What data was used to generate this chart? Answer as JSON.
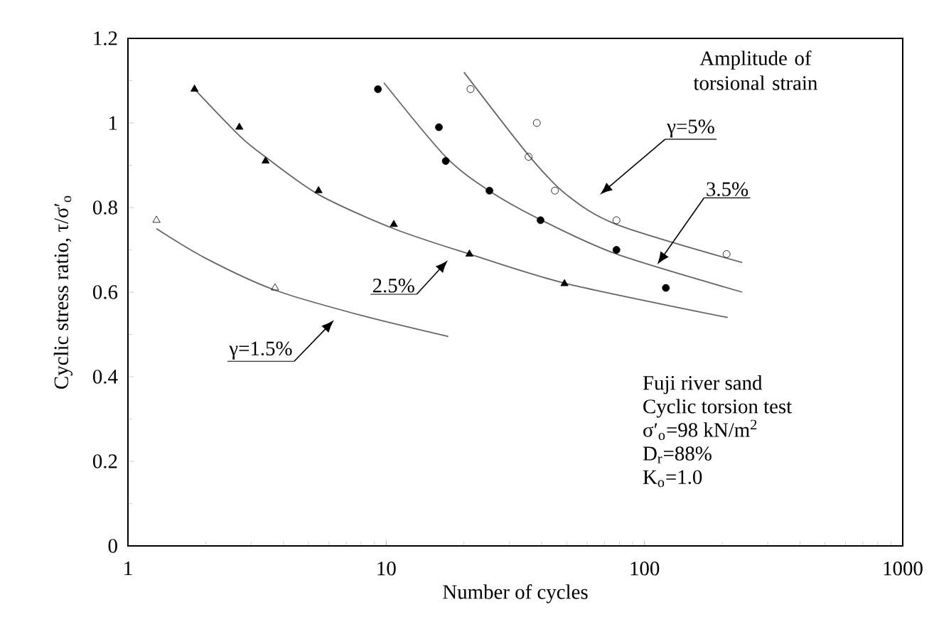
{
  "chart_data": {
    "type": "scatter",
    "xlabel": "Number of cycles",
    "ylabel": "Cyclic stress ratio, τ/σ′$_{o}$",
    "log": "x",
    "grid": false,
    "xlim": [
      1,
      1000
    ],
    "xticks": [
      1,
      10,
      100,
      1000
    ],
    "ylim": [
      0,
      1.2
    ],
    "yticks": [
      0,
      0.2,
      0.4,
      0.6,
      0.8,
      {
        "value": 1,
        "label": "1"
      },
      1.2
    ],
    "series": [
      {
        "marker": "triangle",
        "color": "#000000",
        "x": [
          1.81,
          2.7,
          3.41,
          5.47,
          10.7,
          21.0,
          49
        ],
        "values": [
          1.08,
          0.99,
          0.91,
          0.84,
          0.76,
          0.69,
          0.62
        ]
      },
      {
        "marker": "triangle-open",
        "color": "#000000",
        "x": [
          1.29,
          3.71
        ],
        "values": [
          0.77,
          0.61
        ]
      },
      {
        "marker": "circle",
        "color": "#000000",
        "x": [
          9.29,
          16.0,
          17.0,
          25.1,
          39.6,
          77.9,
          121
        ],
        "values": [
          1.08,
          0.99,
          0.91,
          0.84,
          0.77,
          0.7,
          0.61
        ]
      },
      {
        "marker": "circle-open",
        "color": "#000000",
        "x": [
          21.2,
          38.3,
          35.6,
          45,
          77.9,
          208
        ],
        "values": [
          1.08,
          1.0,
          0.92,
          0.84,
          0.77,
          0.69
        ]
      },
      {
        "type": "line",
        "marker": "none",
        "color": "#666666",
        "x": [
          1.29,
          2,
          3.7,
          8,
          17.4
        ],
        "values": [
          0.75,
          0.68,
          0.605,
          0.545,
          0.495
        ]
      },
      {
        "type": "line",
        "marker": "none",
        "color": "#666666",
        "x": [
          1.81,
          2.7,
          3.4,
          5.5,
          10.7,
          21,
          50,
          210
        ],
        "values": [
          1.08,
          0.97,
          0.92,
          0.83,
          0.75,
          0.69,
          0.62,
          0.54
        ]
      },
      {
        "type": "line",
        "marker": "none",
        "color": "#666666",
        "x": [
          9.8,
          17,
          25,
          40,
          78,
          239
        ],
        "values": [
          1.095,
          0.92,
          0.84,
          0.77,
          0.69,
          0.6
        ]
      },
      {
        "type": "line",
        "marker": "none",
        "color": "#666666",
        "x": [
          20,
          36,
          50,
          78,
          239
        ],
        "values": [
          1.12,
          0.92,
          0.83,
          0.76,
          0.67
        ]
      }
    ],
    "annotations": [
      "Amplitude of torsional strain",
      "γ=5%",
      {
        "text": "3.5%",
        "x": 112,
        "y": 0.665
      },
      "2.5%",
      "γ=1.5%",
      "Fuji river sand",
      "Cyclic torsion test",
      "σ′$_{o}$=98 kN/m$^{2}$",
      "D$_{r}$=88%",
      "K$_{o}$=1.0"
    ]
  }
}
